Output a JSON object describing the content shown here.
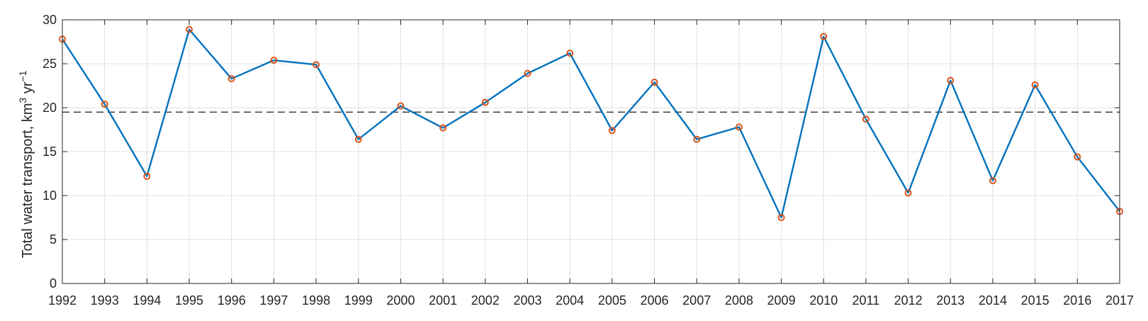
{
  "chart_data": {
    "type": "line",
    "title": "",
    "xlabel": "",
    "ylabel_main": "Total water transport, km",
    "ylabel_sup1": "3",
    "ylabel_mid": " yr",
    "ylabel_sup2": "−1",
    "x": [
      1992,
      1993,
      1994,
      1995,
      1996,
      1997,
      1998,
      1999,
      2000,
      2001,
      2002,
      2003,
      2004,
      2005,
      2006,
      2007,
      2008,
      2009,
      2010,
      2011,
      2012,
      2013,
      2014,
      2015,
      2016,
      2017
    ],
    "series": [
      {
        "values": [
          27.8,
          20.4,
          12.2,
          28.9,
          23.3,
          25.4,
          24.9,
          16.4,
          20.2,
          17.7,
          20.6,
          23.9,
          26.2,
          17.4,
          22.9,
          16.4,
          17.8,
          7.5,
          28.1,
          18.7,
          10.3,
          23.1,
          11.7,
          22.6,
          14.4,
          8.2
        ],
        "color": "#0072BD",
        "marker_color": "#D95319"
      }
    ],
    "reference_line": {
      "y": 19.5,
      "style": "dashed",
      "color": "#000000"
    },
    "xlim": [
      1992,
      2017
    ],
    "ylim": [
      0,
      30
    ],
    "xticks": [
      "1992",
      "1993",
      "1994",
      "1995",
      "1996",
      "1997",
      "1998",
      "1999",
      "2000",
      "2001",
      "2002",
      "2003",
      "2004",
      "2005",
      "2006",
      "2007",
      "2008",
      "2009",
      "2010",
      "2011",
      "2012",
      "2013",
      "2014",
      "2015",
      "2016",
      "2017"
    ],
    "yticks": [
      "0",
      "5",
      "10",
      "15",
      "20",
      "25",
      "30"
    ],
    "grid": true,
    "legend": "none"
  }
}
